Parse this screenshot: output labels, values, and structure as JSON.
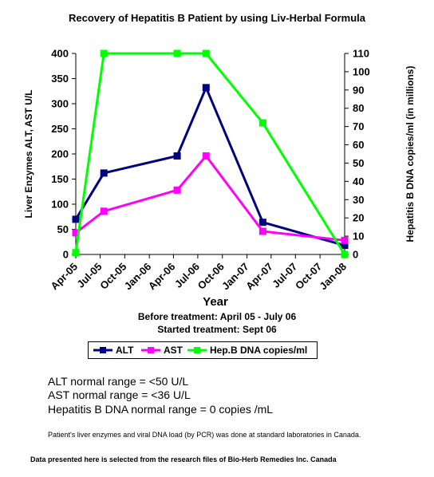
{
  "chart_data": {
    "type": "line",
    "title": "Recovery of Hepatitis B Patient by using Liv-Herbal Formula",
    "xlabel": "Year",
    "ylabel": "Liver Enzymes ALT, AST U/L",
    "y2label": "Hepatitis B DNA copies/ml (in millions)",
    "x_ticks": [
      "Apr-05",
      "Jul-05",
      "Oct-05",
      "Jan-06",
      "Apr-06",
      "Jul-06",
      "Oct-06",
      "Jan-07",
      "Apr-07",
      "Jul-07",
      "Oct-07",
      "Jan-08"
    ],
    "ylim": [
      0,
      400
    ],
    "y_ticks": [
      0,
      50,
      100,
      150,
      200,
      250,
      300,
      350,
      400
    ],
    "y2lim": [
      0,
      110
    ],
    "y2_ticks": [
      0,
      10,
      20,
      30,
      40,
      50,
      60,
      70,
      80,
      90,
      100,
      110
    ],
    "series": [
      {
        "name": "ALT",
        "axis": "left",
        "color": "#000080",
        "marker": "square",
        "x": [
          "2005-04-01",
          "2005-07-15",
          "2006-04-15",
          "2006-08-01",
          "2007-03-01",
          "2008-01-01"
        ],
        "y": [
          70,
          162,
          196,
          332,
          64,
          18
        ]
      },
      {
        "name": "AST",
        "axis": "left",
        "color": "#ff00ff",
        "marker": "square",
        "x": [
          "2005-04-01",
          "2005-07-15",
          "2006-04-15",
          "2006-08-01",
          "2007-03-01",
          "2008-01-01"
        ],
        "y": [
          43,
          86,
          128,
          196,
          46,
          28
        ]
      },
      {
        "name": "Hep.B DNA copies/ml",
        "axis": "right",
        "color": "#00ff00",
        "marker": "square",
        "x": [
          "2005-04-01",
          "2005-07-15",
          "2006-04-15",
          "2006-08-01",
          "2007-03-01",
          "2008-01-01"
        ],
        "y": [
          1,
          110,
          110,
          110,
          72,
          0
        ]
      }
    ],
    "legend_position": "bottom",
    "grid": false
  },
  "notes": {
    "before_treatment": "Before treatment: April 05 - July 06",
    "started_treatment": "Started treatment: Sept 06"
  },
  "ranges": {
    "alt": "ALT normal range = <50 U/L",
    "ast": "AST normal range = <36 U/L",
    "dna": "Hepatitis B DNA normal range = 0 copies /mL"
  },
  "footnotes": {
    "lab": "Patient's liver enzymes and viral DNA load (by PCR) was done at standard laboratories in Canada.",
    "source": "Data presented here is selected from the research files of Bio-Herb Remedies Inc. Canada"
  }
}
